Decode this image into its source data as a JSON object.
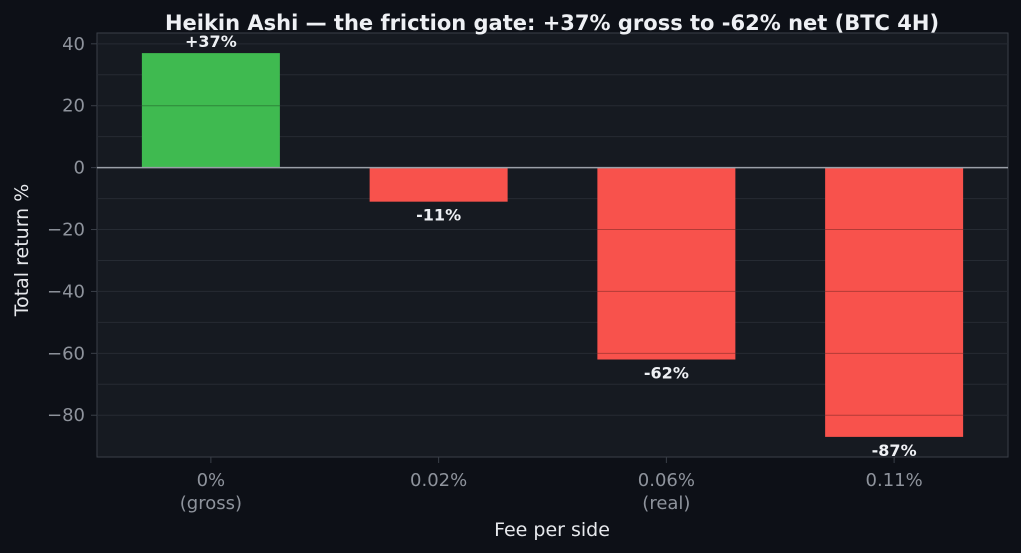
{
  "chart_data": {
    "type": "bar",
    "title": "Heikin Ashi — the friction gate: +37% gross to -62% net (BTC 4H)",
    "xlabel": "Fee per side",
    "ylabel": "Total return %",
    "categories": [
      [
        "0%",
        "(gross)"
      ],
      [
        "0.02%"
      ],
      [
        "0.06%",
        "(real)"
      ],
      [
        "0.11%"
      ]
    ],
    "values": [
      37,
      -11,
      -62,
      -87
    ],
    "data_labels": [
      "+37%",
      "-11%",
      "-62%",
      "-87%"
    ],
    "ylim": [
      -93.5,
      43.5
    ],
    "yticks": [
      40,
      20,
      0,
      -20,
      -40,
      -60,
      -80
    ],
    "ytick_labels": [
      "40",
      "20",
      "0",
      "−20",
      "−40",
      "−60",
      "−80"
    ],
    "grid": true,
    "colors": {
      "positive": "#3fba50",
      "negative": "#f8524c",
      "zero_line": "#9ba0a8",
      "plot_bg": "#161a21",
      "page_bg": "#0d1017",
      "grid": "#262b33",
      "frame": "#3a3f48"
    }
  }
}
